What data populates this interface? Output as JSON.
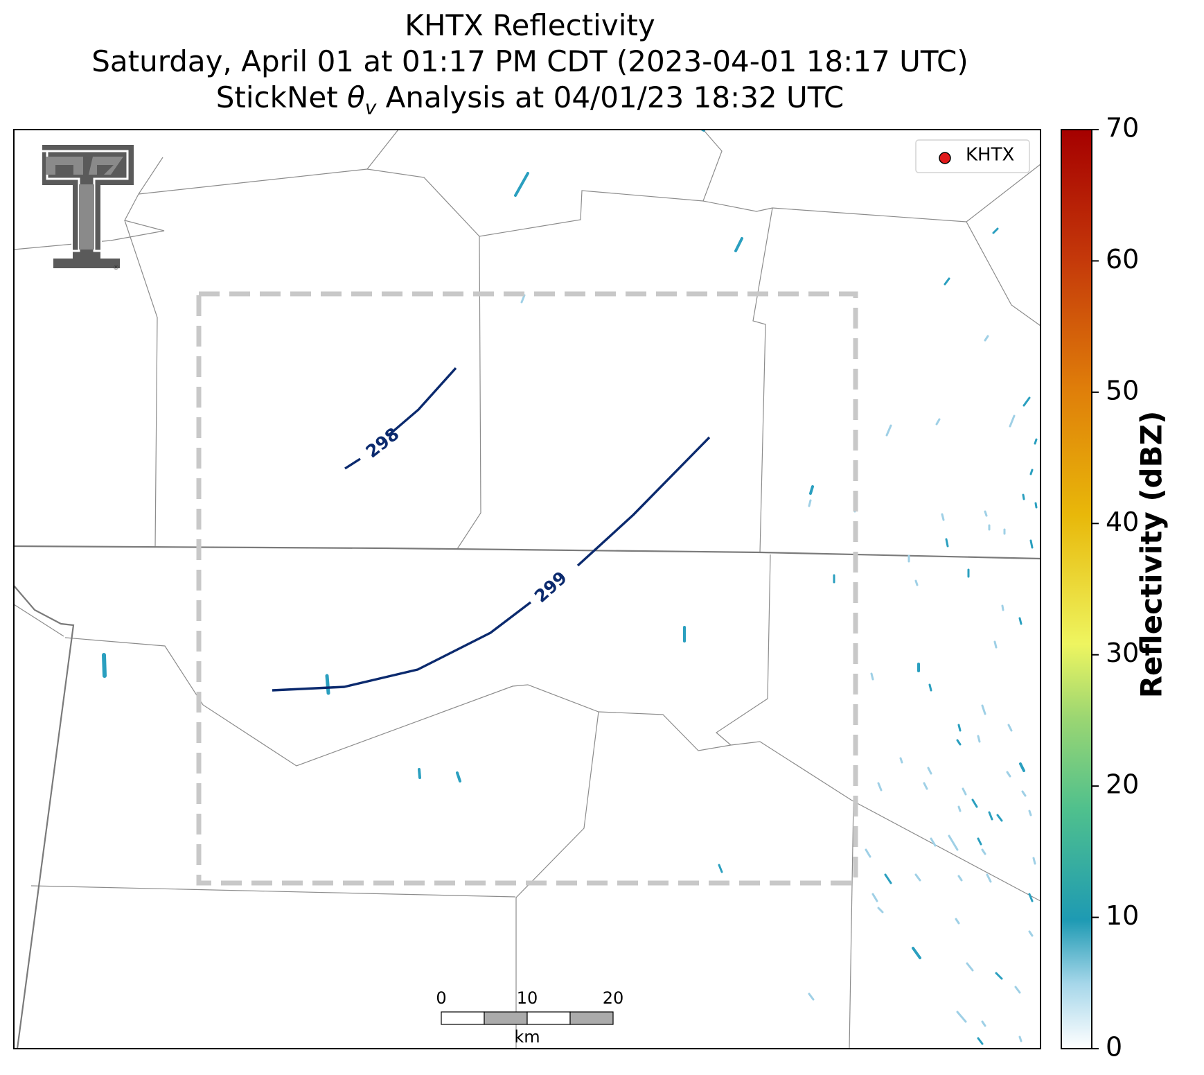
{
  "title": {
    "line1": "KHTX Reflectivity",
    "line2": "Saturday, April 01 at 01:17 PM CDT (2023-04-01 18:17 UTC)",
    "line3_prefix": "StickNet ",
    "line3_symbol": "θ",
    "line3_subscript": "v",
    "line3_suffix": " Analysis at 04/01/23 18:32 UTC"
  },
  "legend": {
    "label": "KHTX",
    "marker_color": "#e0191b"
  },
  "logo": {
    "letter": "T",
    "registered_mark": "®"
  },
  "contours": [
    {
      "label": "298",
      "color": "#0b2a6e"
    },
    {
      "label": "299",
      "color": "#0b2a6e"
    }
  ],
  "scalebar": {
    "ticks": [
      "0",
      "10",
      "20"
    ],
    "unit": "km"
  },
  "colorbar": {
    "label": "Reflectivity (dBZ)",
    "ticks": [
      "0",
      "10",
      "20",
      "30",
      "40",
      "50",
      "60",
      "70"
    ],
    "range": [
      0,
      70
    ],
    "colors": [
      "#ffffff",
      "#a7d7ea",
      "#1e9ab3",
      "#4fc08d",
      "#9bd672",
      "#eef560",
      "#e8b80a",
      "#df7d0a",
      "#c4380a",
      "#a50000"
    ]
  }
}
